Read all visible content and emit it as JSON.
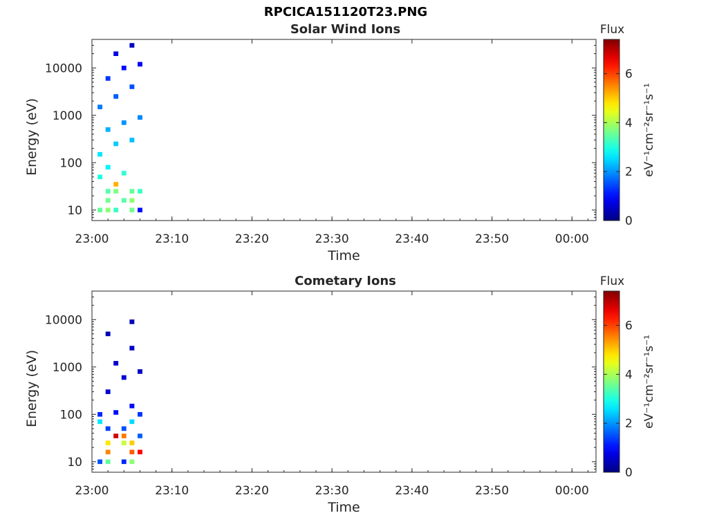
{
  "title": "RPCICA151120T23.PNG",
  "colorbar": {
    "label": "Flux",
    "unit": "eV⁻¹cm⁻²sr⁻¹s⁻¹",
    "ticks": [
      "0",
      "2",
      "4",
      "6"
    ],
    "range": [
      0,
      7.4
    ],
    "colormap": "jet"
  },
  "chart_data": [
    {
      "type": "heatmap",
      "title": "Solar Wind Ions",
      "xlabel": "Time",
      "ylabel": "Energy (eV)",
      "y_scale": "log",
      "ylim": [
        6,
        40000
      ],
      "xlim": [
        "23:00",
        "00:03"
      ],
      "x_ticks": [
        "23:00",
        "23:10",
        "23:20",
        "23:30",
        "23:40",
        "23:50",
        "00:00"
      ],
      "y_ticks": [
        "10",
        "100",
        "1000",
        "10000"
      ],
      "cells": [
        {
          "time": "23:01",
          "energy": 10,
          "flux": 3.5
        },
        {
          "time": "23:02",
          "energy": 10,
          "flux": 3.8
        },
        {
          "time": "23:03",
          "energy": 10,
          "flux": 3.2
        },
        {
          "time": "23:05",
          "energy": 10,
          "flux": 3.6
        },
        {
          "time": "23:06",
          "energy": 10,
          "flux": 1.0
        },
        {
          "time": "23:02",
          "energy": 16,
          "flux": 3.6
        },
        {
          "time": "23:04",
          "energy": 16,
          "flux": 3.4
        },
        {
          "time": "23:05",
          "energy": 16,
          "flux": 3.8
        },
        {
          "time": "23:02",
          "energy": 25,
          "flux": 3.4
        },
        {
          "time": "23:03",
          "energy": 25,
          "flux": 3.7
        },
        {
          "time": "23:05",
          "energy": 25,
          "flux": 3.5
        },
        {
          "time": "23:06",
          "energy": 25,
          "flux": 3.2
        },
        {
          "time": "23:03",
          "energy": 35,
          "flux": 5.2
        },
        {
          "time": "23:01",
          "energy": 50,
          "flux": 3.0
        },
        {
          "time": "23:04",
          "energy": 60,
          "flux": 3.1
        },
        {
          "time": "23:02",
          "energy": 80,
          "flux": 2.7
        },
        {
          "time": "23:01",
          "energy": 150,
          "flux": 2.6
        },
        {
          "time": "23:03",
          "energy": 250,
          "flux": 2.4
        },
        {
          "time": "23:05",
          "energy": 300,
          "flux": 2.3
        },
        {
          "time": "23:02",
          "energy": 500,
          "flux": 2.2
        },
        {
          "time": "23:04",
          "energy": 700,
          "flux": 2.0
        },
        {
          "time": "23:06",
          "energy": 900,
          "flux": 1.9
        },
        {
          "time": "23:01",
          "energy": 1500,
          "flux": 1.8
        },
        {
          "time": "23:03",
          "energy": 2500,
          "flux": 1.6
        },
        {
          "time": "23:05",
          "energy": 4000,
          "flux": 1.5
        },
        {
          "time": "23:02",
          "energy": 6000,
          "flux": 1.3
        },
        {
          "time": "23:04",
          "energy": 10000,
          "flux": 1.0
        },
        {
          "time": "23:06",
          "energy": 12000,
          "flux": 0.9
        },
        {
          "time": "23:03",
          "energy": 20000,
          "flux": 0.7
        },
        {
          "time": "23:05",
          "energy": 30000,
          "flux": 0.5
        }
      ]
    },
    {
      "type": "heatmap",
      "title": "Cometary Ions",
      "xlabel": "Time",
      "ylabel": "Energy (eV)",
      "y_scale": "log",
      "ylim": [
        6,
        40000
      ],
      "xlim": [
        "23:00",
        "00:03"
      ],
      "x_ticks": [
        "23:00",
        "23:10",
        "23:20",
        "23:30",
        "23:40",
        "23:50",
        "00:00"
      ],
      "y_ticks": [
        "10",
        "100",
        "1000",
        "10000"
      ],
      "cells": [
        {
          "time": "23:01",
          "energy": 10,
          "flux": 1.5
        },
        {
          "time": "23:02",
          "energy": 10,
          "flux": 3.5
        },
        {
          "time": "23:04",
          "energy": 10,
          "flux": 1.2
        },
        {
          "time": "23:05",
          "energy": 10,
          "flux": 3.8
        },
        {
          "time": "23:02",
          "energy": 16,
          "flux": 5.5
        },
        {
          "time": "23:05",
          "energy": 16,
          "flux": 5.8
        },
        {
          "time": "23:06",
          "energy": 16,
          "flux": 6.5
        },
        {
          "time": "23:02",
          "energy": 25,
          "flux": 4.8
        },
        {
          "time": "23:04",
          "energy": 25,
          "flux": 4.2
        },
        {
          "time": "23:05",
          "energy": 25,
          "flux": 5.0
        },
        {
          "time": "23:03",
          "energy": 35,
          "flux": 6.8
        },
        {
          "time": "23:04",
          "energy": 35,
          "flux": 5.6
        },
        {
          "time": "23:06",
          "energy": 35,
          "flux": 1.6
        },
        {
          "time": "23:02",
          "energy": 50,
          "flux": 1.4
        },
        {
          "time": "23:04",
          "energy": 50,
          "flux": 1.5
        },
        {
          "time": "23:01",
          "energy": 70,
          "flux": 2.6
        },
        {
          "time": "23:05",
          "energy": 70,
          "flux": 2.5
        },
        {
          "time": "23:01",
          "energy": 100,
          "flux": 1.2
        },
        {
          "time": "23:03",
          "energy": 110,
          "flux": 1.0
        },
        {
          "time": "23:06",
          "energy": 100,
          "flux": 1.3
        },
        {
          "time": "23:05",
          "energy": 150,
          "flux": 1.0
        },
        {
          "time": "23:02",
          "energy": 300,
          "flux": 0.6
        },
        {
          "time": "23:04",
          "energy": 600,
          "flux": 0.6
        },
        {
          "time": "23:06",
          "energy": 800,
          "flux": 0.5
        },
        {
          "time": "23:03",
          "energy": 1200,
          "flux": 0.6
        },
        {
          "time": "23:05",
          "energy": 2500,
          "flux": 0.5
        },
        {
          "time": "23:02",
          "energy": 5000,
          "flux": 0.4
        },
        {
          "time": "23:05",
          "energy": 9000,
          "flux": 0.4
        }
      ]
    }
  ]
}
